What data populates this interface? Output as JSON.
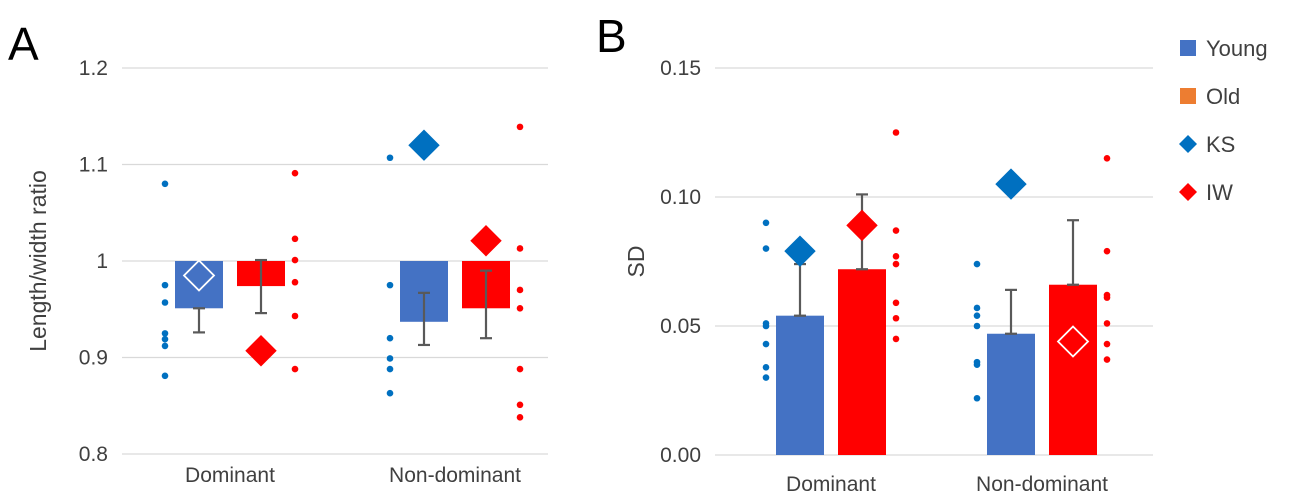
{
  "colors": {
    "young": "#4472C4",
    "old": "#ED7D31",
    "red_bar": "#FF0000",
    "ks": "#0070C0",
    "iw": "#FF0000",
    "young_dots": "#0070C0",
    "old_dots": "#FF0000",
    "grid": "#D9D9D9",
    "error_bar": "#595959"
  },
  "legend": {
    "position": "right",
    "items": [
      {
        "label": "Young",
        "marker": "square",
        "color": "#4472C4"
      },
      {
        "label": "Old",
        "marker": "square",
        "color": "#ED7D31"
      },
      {
        "label": "KS",
        "marker": "diamond",
        "color": "#0070C0"
      },
      {
        "label": "IW",
        "marker": "diamond",
        "color": "#FF0000"
      }
    ]
  },
  "chart_data": [
    {
      "panel": "A",
      "type": "bar",
      "ylabel": "Length/width ratio",
      "ylim": [
        0.8,
        1.2
      ],
      "yticks": [
        0.8,
        0.9,
        1.0,
        1.1,
        1.2
      ],
      "ytick_labels": [
        "0.8",
        "0.9",
        "1",
        "1.1",
        "1.2"
      ],
      "bar_base": 1.0,
      "grid": true,
      "categories": [
        "Dominant",
        "Non-dominant"
      ],
      "series": [
        {
          "name": "Young",
          "values": [
            0.951,
            0.937
          ],
          "err_low": [
            0.926,
            0.913
          ],
          "err_high": [
            0.951,
            0.967
          ]
        },
        {
          "name": "Old",
          "values": [
            0.974,
            0.951
          ],
          "err_low": [
            0.946,
            0.92
          ],
          "err_high": [
            1.001,
            0.99
          ]
        }
      ],
      "diamonds": [
        {
          "name": "KS",
          "values": [
            0.985,
            1.12
          ],
          "hollow": [
            true,
            false
          ]
        },
        {
          "name": "IW",
          "values": [
            0.907,
            1.021
          ],
          "hollow": [
            false,
            false
          ]
        }
      ],
      "dots": {
        "Young": [
          [
            0.881,
            0.912,
            0.919,
            0.925,
            0.957,
            0.975,
            1.08
          ],
          [
            0.863,
            0.888,
            0.899,
            0.92,
            0.975,
            1.107
          ]
        ],
        "Old": [
          [
            0.888,
            0.943,
            0.978,
            1.001,
            1.023,
            1.091
          ],
          [
            0.838,
            0.851,
            0.888,
            0.951,
            0.97,
            1.013,
            1.139
          ]
        ]
      }
    },
    {
      "panel": "B",
      "type": "bar",
      "ylabel": "SD",
      "ylim": [
        0.0,
        0.15
      ],
      "yticks": [
        0.0,
        0.05,
        0.1,
        0.15
      ],
      "ytick_labels": [
        "0.00",
        "0.05",
        "0.10",
        "0.15"
      ],
      "bar_base": 0.0,
      "grid": true,
      "categories": [
        "Dominant",
        "Non-dominant"
      ],
      "series": [
        {
          "name": "Young",
          "values": [
            0.054,
            0.047
          ],
          "err_low": [
            0.054,
            0.047
          ],
          "err_high": [
            0.074,
            0.064
          ]
        },
        {
          "name": "Old",
          "values": [
            0.072,
            0.066
          ],
          "err_low": [
            0.072,
            0.066
          ],
          "err_high": [
            0.101,
            0.091
          ]
        }
      ],
      "diamonds": [
        {
          "name": "KS",
          "values": [
            0.079,
            0.105
          ],
          "hollow": [
            false,
            false
          ]
        },
        {
          "name": "IW",
          "values": [
            0.089,
            0.044
          ],
          "hollow": [
            false,
            true
          ]
        }
      ],
      "dots": {
        "Young": [
          [
            0.03,
            0.034,
            0.043,
            0.05,
            0.051,
            0.08,
            0.09
          ],
          [
            0.022,
            0.035,
            0.036,
            0.05,
            0.054,
            0.057,
            0.074
          ]
        ],
        "Old": [
          [
            0.045,
            0.053,
            0.059,
            0.074,
            0.077,
            0.087,
            0.125
          ],
          [
            0.037,
            0.043,
            0.051,
            0.061,
            0.062,
            0.079,
            0.115
          ]
        ]
      }
    }
  ]
}
